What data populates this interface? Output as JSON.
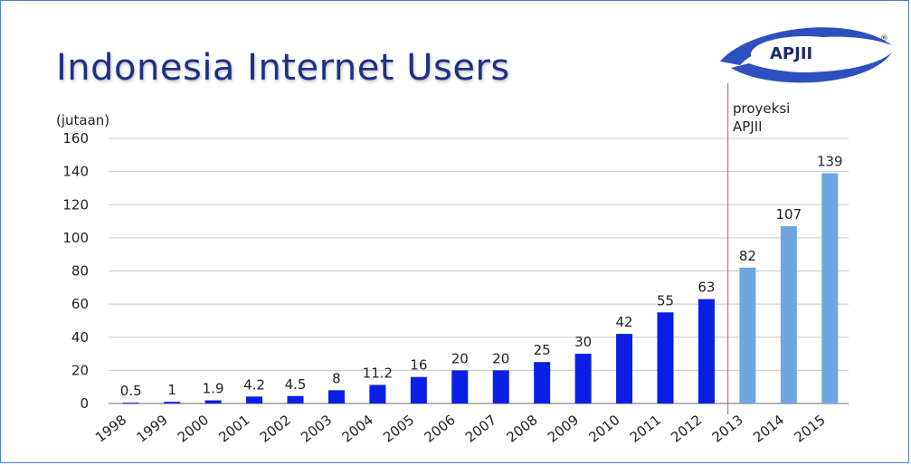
{
  "title": "Indonesia Internet Users",
  "unit_label": "(jutaan)",
  "projection_label": [
    "proyeksi",
    "APJII"
  ],
  "logo_text": "APJII",
  "logo_mark": "®",
  "colors": {
    "title": "#1f2f86",
    "actual_bar": "#0a1fe6",
    "projected_bar": "#6fa6e0",
    "divider": "#a0616a",
    "grid": "#c8c8c8"
  },
  "chart_data": {
    "type": "bar",
    "title": "Indonesia Internet Users",
    "ylabel": "(jutaan)",
    "xlabel": "",
    "ylim": [
      0,
      160
    ],
    "yticks": [
      0,
      20,
      40,
      60,
      80,
      100,
      120,
      140,
      160
    ],
    "grid": true,
    "categories": [
      "1998",
      "1999",
      "2000",
      "2001",
      "2002",
      "2003",
      "2004",
      "2005",
      "2006",
      "2007",
      "2008",
      "2009",
      "2010",
      "2011",
      "2012",
      "2013",
      "2014",
      "2015"
    ],
    "values": [
      0.5,
      1,
      1.9,
      4.2,
      4.5,
      8,
      11.2,
      16,
      20,
      20,
      25,
      30,
      42,
      55,
      63,
      82,
      107,
      139
    ],
    "data_labels": [
      "0.5",
      "1",
      "1.9",
      "4.2",
      "4.5",
      "8",
      "11.2",
      "16",
      "20",
      "20",
      "25",
      "30",
      "42",
      "55",
      "63",
      "82",
      "107",
      "139"
    ],
    "projected_from": "2013"
  }
}
